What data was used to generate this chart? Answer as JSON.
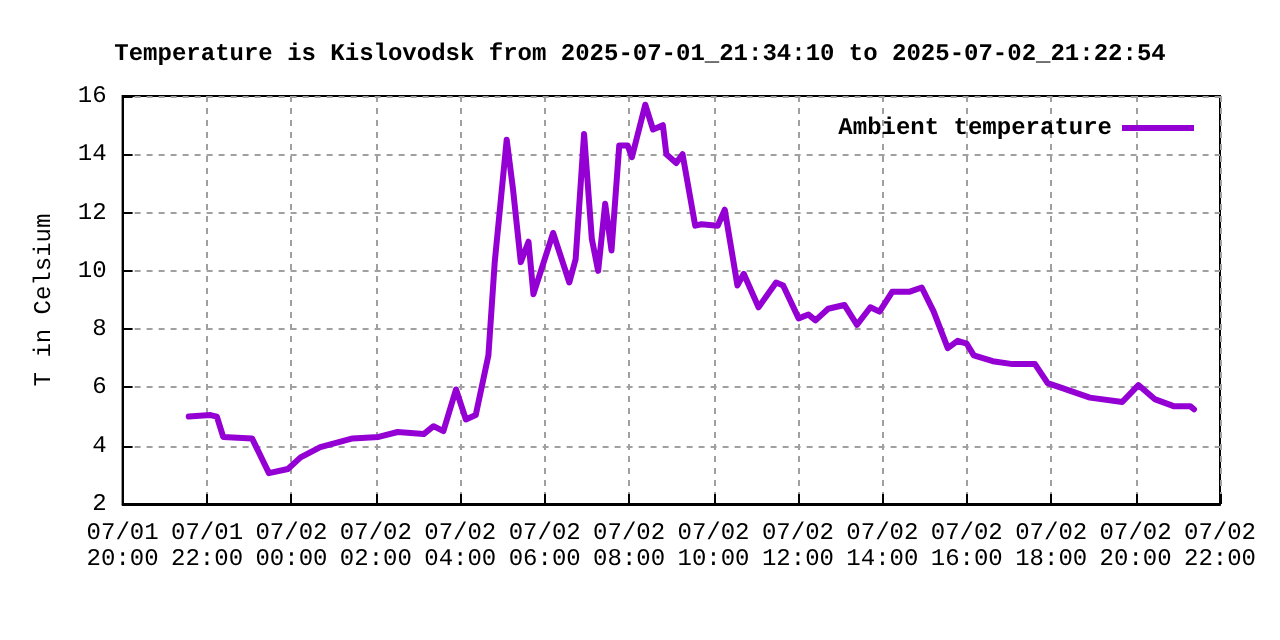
{
  "chart_data": {
    "type": "line",
    "title": "Temperature is Kislovodsk from 2025-07-01_21:34:10 to 2025-07-02_21:22:54",
    "ylabel": "T in Celsium",
    "x": [
      "2025-07-01T21:34",
      "2025-07-01T22:05",
      "2025-07-01T22:14",
      "2025-07-01T22:23",
      "2025-07-01T23:04",
      "2025-07-01T23:28",
      "2025-07-01T23:55",
      "2025-07-02T00:13",
      "2025-07-02T00:41",
      "2025-07-02T01:27",
      "2025-07-02T02:04",
      "2025-07-02T02:31",
      "2025-07-02T03:08",
      "2025-07-02T03:22",
      "2025-07-02T03:36",
      "2025-07-02T03:54",
      "2025-07-02T04:08",
      "2025-07-02T04:22",
      "2025-07-02T04:40",
      "2025-07-02T04:49",
      "2025-07-02T05:06",
      "2025-07-02T05:15",
      "2025-07-02T05:26",
      "2025-07-02T05:37",
      "2025-07-02T05:44",
      "2025-07-02T06:12",
      "2025-07-02T06:35",
      "2025-07-02T06:44",
      "2025-07-02T06:56",
      "2025-07-02T07:07",
      "2025-07-02T07:16",
      "2025-07-02T07:26",
      "2025-07-02T07:35",
      "2025-07-02T07:46",
      "2025-07-02T07:58",
      "2025-07-02T08:04",
      "2025-07-02T08:23",
      "2025-07-02T08:34",
      "2025-07-02T08:48",
      "2025-07-02T08:53",
      "2025-07-02T09:07",
      "2025-07-02T09:16",
      "2025-07-02T09:34",
      "2025-07-02T09:43",
      "2025-07-02T10:06",
      "2025-07-02T10:16",
      "2025-07-02T10:34",
      "2025-07-02T10:43",
      "2025-07-02T11:04",
      "2025-07-02T11:29",
      "2025-07-02T11:39",
      "2025-07-02T12:01",
      "2025-07-02T12:15",
      "2025-07-02T12:25",
      "2025-07-02T12:43",
      "2025-07-02T13:06",
      "2025-07-02T13:24",
      "2025-07-02T13:43",
      "2025-07-02T13:56",
      "2025-07-02T14:14",
      "2025-07-02T14:38",
      "2025-07-02T14:56",
      "2025-07-02T15:13",
      "2025-07-02T15:33",
      "2025-07-02T15:47",
      "2025-07-02T16:00",
      "2025-07-02T16:10",
      "2025-07-02T16:37",
      "2025-07-02T17:05",
      "2025-07-02T17:37",
      "2025-07-02T17:55",
      "2025-07-02T18:19",
      "2025-07-02T18:55",
      "2025-07-02T19:41",
      "2025-07-02T20:04",
      "2025-07-02T20:27",
      "2025-07-02T20:55",
      "2025-07-02T21:18",
      "2025-07-02T21:23"
    ],
    "series": [
      {
        "name": "Ambient temperature",
        "color": "#9400d3",
        "values": [
          5.0,
          5.05,
          5.0,
          4.3,
          4.25,
          3.06,
          3.2,
          3.6,
          3.95,
          4.25,
          4.3,
          4.47,
          4.4,
          4.67,
          4.5,
          5.93,
          4.9,
          5.05,
          7.1,
          10.3,
          14.5,
          12.8,
          10.3,
          11.0,
          9.2,
          11.3,
          9.6,
          10.4,
          14.7,
          11.1,
          10.0,
          12.3,
          10.7,
          14.3,
          14.3,
          13.9,
          15.7,
          14.85,
          15.0,
          14.0,
          13.7,
          14.0,
          11.55,
          11.6,
          11.55,
          12.1,
          9.5,
          9.9,
          8.75,
          9.6,
          9.5,
          8.37,
          8.5,
          8.3,
          8.7,
          8.83,
          8.15,
          8.75,
          8.6,
          9.28,
          9.28,
          9.43,
          8.6,
          7.35,
          7.6,
          7.5,
          7.1,
          6.9,
          6.8,
          6.8,
          6.15,
          5.95,
          5.65,
          5.5,
          6.08,
          5.6,
          5.35,
          5.35,
          5.25
        ]
      }
    ],
    "xlim": [
      "2025-07-01T20:00",
      "2025-07-02T22:00"
    ],
    "xticks": [
      {
        "value": "2025-07-01T20:00",
        "label": "07/01\n20:00"
      },
      {
        "value": "2025-07-01T22:00",
        "label": "07/01\n22:00"
      },
      {
        "value": "2025-07-02T00:00",
        "label": "07/02\n00:00"
      },
      {
        "value": "2025-07-02T02:00",
        "label": "07/02\n02:00"
      },
      {
        "value": "2025-07-02T04:00",
        "label": "07/02\n04:00"
      },
      {
        "value": "2025-07-02T06:00",
        "label": "07/02\n06:00"
      },
      {
        "value": "2025-07-02T08:00",
        "label": "07/02\n08:00"
      },
      {
        "value": "2025-07-02T10:00",
        "label": "07/02\n10:00"
      },
      {
        "value": "2025-07-02T12:00",
        "label": "07/02\n12:00"
      },
      {
        "value": "2025-07-02T14:00",
        "label": "07/02\n14:00"
      },
      {
        "value": "2025-07-02T16:00",
        "label": "07/02\n16:00"
      },
      {
        "value": "2025-07-02T18:00",
        "label": "07/02\n18:00"
      },
      {
        "value": "2025-07-02T20:00",
        "label": "07/02\n20:00"
      },
      {
        "value": "2025-07-02T22:00",
        "label": "07/02\n22:00"
      }
    ],
    "ylim": [
      2,
      16
    ],
    "yticks": [
      2,
      4,
      6,
      8,
      10,
      12,
      14,
      16
    ],
    "grid": true,
    "legend": "top right",
    "marker": "none",
    "line_style": "solid"
  }
}
